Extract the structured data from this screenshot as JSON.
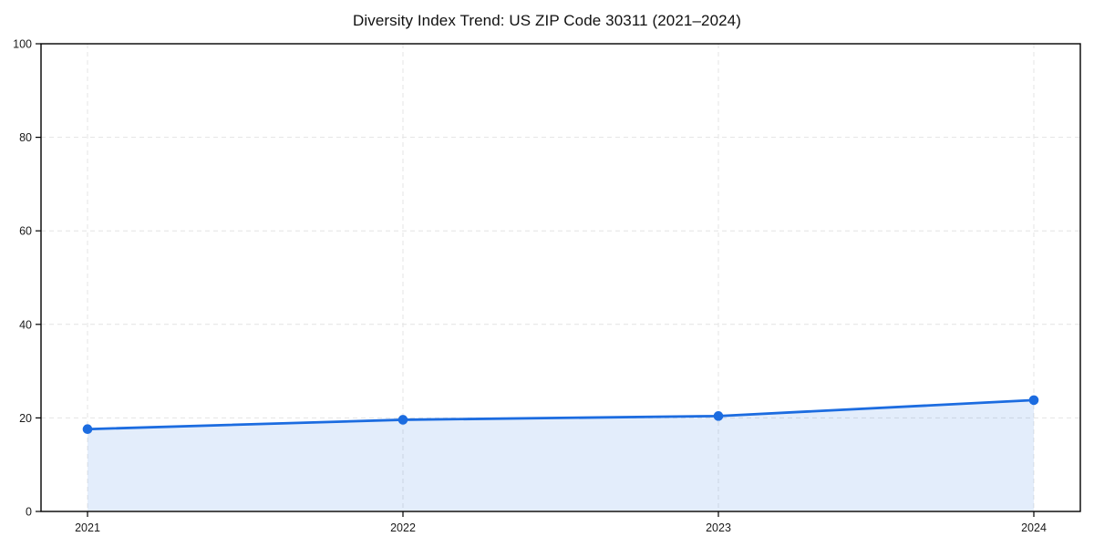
{
  "chart_data": {
    "type": "line",
    "variant": "line-with-area-fill",
    "title": "Diversity Index Trend: US ZIP Code 30311 (2021–2024)",
    "categories": [
      "2021",
      "2022",
      "2023",
      "2024"
    ],
    "series": [
      {
        "name": "Diversity Index",
        "values": [
          17.6,
          19.6,
          20.4,
          23.8
        ]
      }
    ],
    "xlabel": "",
    "ylabel": "",
    "ylim": [
      0,
      100
    ],
    "yticks": [
      0,
      20,
      40,
      60,
      80,
      100
    ],
    "grid": "on",
    "grid_style": "dashed",
    "legend": "none",
    "colors": {
      "line": "#1c6ce0",
      "marker": "#1c6ce0",
      "area_fill": "#e8effb",
      "area_fill_rgba": "rgba(28,108,224,0.12)",
      "grid": "#e4e4e4",
      "spine": "#000000",
      "tick_text": "#1a1a1a",
      "background": "#ffffff"
    }
  }
}
